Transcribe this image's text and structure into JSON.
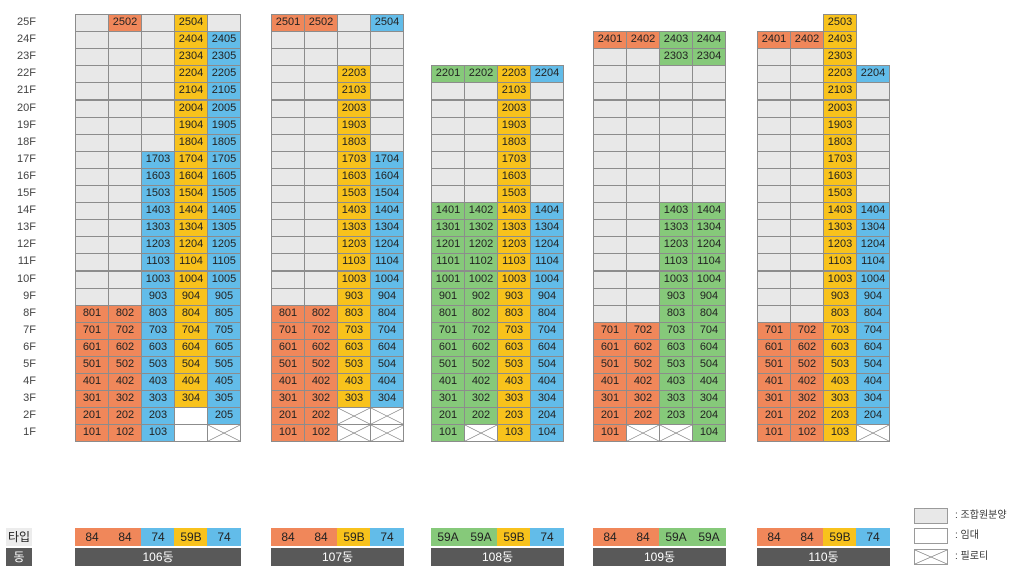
{
  "floors": [
    "25F",
    "24F",
    "23F",
    "22F",
    "21F",
    "20F",
    "19F",
    "18F",
    "17F",
    "16F",
    "15F",
    "14F",
    "13F",
    "12F",
    "11F",
    "10F",
    "9F",
    "8F",
    "7F",
    "6F",
    "5F",
    "4F",
    "3F",
    "2F",
    "1F"
  ],
  "row_headers": {
    "type": "타입",
    "dong": "동"
  },
  "legend": [
    {
      "key": "gray",
      "label": ": 조합원분양",
      "color": "#e8e8e8"
    },
    {
      "key": "white",
      "label": ": 임대",
      "color": "#ffffff"
    },
    {
      "key": "x",
      "label": ": 필로티",
      "color": "#ffffff"
    }
  ],
  "colors": {
    "orange": "#f0875a",
    "yellow": "#f8c21c",
    "blue": "#62bce9",
    "green": "#86c97a",
    "gray": "#e8e8e8",
    "dark": "#595959"
  },
  "buildings": [
    {
      "name": "106동",
      "types": [
        {
          "label": "84",
          "color": "o"
        },
        {
          "label": "84",
          "color": "o"
        },
        {
          "label": "74",
          "color": "b"
        },
        {
          "label": "59B",
          "color": "y"
        },
        {
          "label": "74",
          "color": "b"
        }
      ],
      "rows": [
        [
          "e",
          "o2502",
          "e",
          "y2504",
          "e"
        ],
        [
          "e",
          "e",
          "e",
          "y2404",
          "b2405"
        ],
        [
          "e",
          "e",
          "e",
          "y2304",
          "b2305"
        ],
        [
          "e",
          "e",
          "e",
          "y2204",
          "b2205"
        ],
        [
          "e",
          "e",
          "e",
          "y2104",
          "b2105"
        ],
        [
          "e",
          "e",
          "e",
          "y2004",
          "b2005"
        ],
        [
          "e",
          "e",
          "e",
          "y1904",
          "b1905"
        ],
        [
          "e",
          "e",
          "e",
          "y1804",
          "b1805"
        ],
        [
          "e",
          "e",
          "b1703",
          "y1704",
          "b1705"
        ],
        [
          "e",
          "e",
          "b1603",
          "y1604",
          "b1605"
        ],
        [
          "e",
          "e",
          "b1503",
          "y1504",
          "b1505"
        ],
        [
          "e",
          "e",
          "b1403",
          "y1404",
          "b1405"
        ],
        [
          "e",
          "e",
          "b1303",
          "y1304",
          "b1305"
        ],
        [
          "e",
          "e",
          "b1203",
          "y1204",
          "b1205"
        ],
        [
          "e",
          "e",
          "b1103",
          "y1104",
          "b1105"
        ],
        [
          "e",
          "e",
          "b1003",
          "y1004",
          "b1005"
        ],
        [
          "e",
          "e",
          "b903",
          "y904",
          "b905"
        ],
        [
          "o801",
          "o802",
          "b803",
          "y804",
          "b805"
        ],
        [
          "o701",
          "o702",
          "b703",
          "y704",
          "b705"
        ],
        [
          "o601",
          "o602",
          "b603",
          "y604",
          "b605"
        ],
        [
          "o501",
          "o502",
          "b503",
          "y504",
          "b505"
        ],
        [
          "o401",
          "o402",
          "b403",
          "y404",
          "b405"
        ],
        [
          "o301",
          "o302",
          "b303",
          "y304",
          "b305"
        ],
        [
          "o201",
          "o202",
          "b203",
          "w",
          "b205"
        ],
        [
          "o101",
          "o102",
          "b103",
          "w",
          "x"
        ]
      ]
    },
    {
      "name": "107동",
      "types": [
        {
          "label": "84",
          "color": "o"
        },
        {
          "label": "84",
          "color": "o"
        },
        {
          "label": "59B",
          "color": "y"
        },
        {
          "label": "74",
          "color": "b"
        }
      ],
      "rows": [
        [
          "o2501",
          "o2502",
          "e",
          "b2504"
        ],
        [
          "e",
          "e",
          "e",
          "e"
        ],
        [
          "e",
          "e",
          "e",
          "e"
        ],
        [
          "e",
          "e",
          "y2203",
          "e"
        ],
        [
          "e",
          "e",
          "y2103",
          "e"
        ],
        [
          "e",
          "e",
          "y2003",
          "e"
        ],
        [
          "e",
          "e",
          "y1903",
          "e"
        ],
        [
          "e",
          "e",
          "y1803",
          "e"
        ],
        [
          "e",
          "e",
          "y1703",
          "b1704"
        ],
        [
          "e",
          "e",
          "y1603",
          "b1604"
        ],
        [
          "e",
          "e",
          "y1503",
          "b1504"
        ],
        [
          "e",
          "e",
          "y1403",
          "b1404"
        ],
        [
          "e",
          "e",
          "y1303",
          "b1304"
        ],
        [
          "e",
          "e",
          "y1203",
          "b1204"
        ],
        [
          "e",
          "e",
          "y1103",
          "b1104"
        ],
        [
          "e",
          "e",
          "y1003",
          "b1004"
        ],
        [
          "e",
          "e",
          "y903",
          "b904"
        ],
        [
          "o801",
          "o802",
          "y803",
          "b804"
        ],
        [
          "o701",
          "o702",
          "y703",
          "b704"
        ],
        [
          "o601",
          "o602",
          "y603",
          "b604"
        ],
        [
          "o501",
          "o502",
          "y503",
          "b504"
        ],
        [
          "o401",
          "o402",
          "y403",
          "b404"
        ],
        [
          "o301",
          "o302",
          "y303",
          "b304"
        ],
        [
          "o201",
          "o202",
          "x",
          "x"
        ],
        [
          "o101",
          "o102",
          "x",
          "x"
        ]
      ]
    },
    {
      "name": "108동",
      "types": [
        {
          "label": "59A",
          "color": "g"
        },
        {
          "label": "59A",
          "color": "g"
        },
        {
          "label": "59B",
          "color": "y"
        },
        {
          "label": "74",
          "color": "b"
        }
      ],
      "rows": [
        [
          "-",
          "-",
          "-",
          "-"
        ],
        [
          "-",
          "-",
          "-",
          "-"
        ],
        [
          "-",
          "-",
          "-",
          "-"
        ],
        [
          "g2201",
          "g2202",
          "y2203",
          "b2204"
        ],
        [
          "e",
          "e",
          "y2103",
          "e"
        ],
        [
          "e",
          "e",
          "y2003",
          "e"
        ],
        [
          "e",
          "e",
          "y1903",
          "e"
        ],
        [
          "e",
          "e",
          "y1803",
          "e"
        ],
        [
          "e",
          "e",
          "y1703",
          "e"
        ],
        [
          "e",
          "e",
          "y1603",
          "e"
        ],
        [
          "e",
          "e",
          "y1503",
          "e"
        ],
        [
          "g1401",
          "g1402",
          "y1403",
          "b1404"
        ],
        [
          "g1301",
          "g1302",
          "y1303",
          "b1304"
        ],
        [
          "g1201",
          "g1202",
          "y1203",
          "b1204"
        ],
        [
          "g1101",
          "g1102",
          "y1103",
          "b1104"
        ],
        [
          "g1001",
          "g1002",
          "y1003",
          "b1004"
        ],
        [
          "g901",
          "g902",
          "y903",
          "b904"
        ],
        [
          "g801",
          "g802",
          "y803",
          "b804"
        ],
        [
          "g701",
          "g702",
          "y703",
          "b704"
        ],
        [
          "g601",
          "g602",
          "y603",
          "b604"
        ],
        [
          "g501",
          "g502",
          "y503",
          "b504"
        ],
        [
          "g401",
          "g402",
          "y403",
          "b404"
        ],
        [
          "g301",
          "g302",
          "y303",
          "b304"
        ],
        [
          "g201",
          "g202",
          "y203",
          "b204"
        ],
        [
          "g101",
          "x",
          "y103",
          "b104"
        ]
      ]
    },
    {
      "name": "109동",
      "types": [
        {
          "label": "84",
          "color": "o"
        },
        {
          "label": "84",
          "color": "o"
        },
        {
          "label": "59A",
          "color": "g"
        },
        {
          "label": "59A",
          "color": "g"
        }
      ],
      "rows": [
        [
          "-",
          "-",
          "-",
          "-"
        ],
        [
          "o2401",
          "o2402",
          "g2403",
          "g2404"
        ],
        [
          "e",
          "e",
          "g2303",
          "g2304"
        ],
        [
          "e",
          "e",
          "e",
          "e"
        ],
        [
          "e",
          "e",
          "e",
          "e"
        ],
        [
          "e",
          "e",
          "e",
          "e"
        ],
        [
          "e",
          "e",
          "e",
          "e"
        ],
        [
          "e",
          "e",
          "e",
          "e"
        ],
        [
          "e",
          "e",
          "e",
          "e"
        ],
        [
          "e",
          "e",
          "e",
          "e"
        ],
        [
          "e",
          "e",
          "e",
          "e"
        ],
        [
          "e",
          "e",
          "g1403",
          "g1404"
        ],
        [
          "e",
          "e",
          "g1303",
          "g1304"
        ],
        [
          "e",
          "e",
          "g1203",
          "g1204"
        ],
        [
          "e",
          "e",
          "g1103",
          "g1104"
        ],
        [
          "e",
          "e",
          "g1003",
          "g1004"
        ],
        [
          "e",
          "e",
          "g903",
          "g904"
        ],
        [
          "e",
          "e",
          "g803",
          "g804"
        ],
        [
          "o701",
          "o702",
          "g703",
          "g704"
        ],
        [
          "o601",
          "o602",
          "g603",
          "g604"
        ],
        [
          "o501",
          "o502",
          "g503",
          "g504"
        ],
        [
          "o401",
          "o402",
          "g403",
          "g404"
        ],
        [
          "o301",
          "o302",
          "g303",
          "g304"
        ],
        [
          "o201",
          "o202",
          "g203",
          "g204"
        ],
        [
          "o101",
          "x",
          "x",
          "g104"
        ]
      ]
    },
    {
      "name": "110동",
      "types": [
        {
          "label": "84",
          "color": "o"
        },
        {
          "label": "84",
          "color": "o"
        },
        {
          "label": "59B",
          "color": "y"
        },
        {
          "label": "74",
          "color": "b"
        }
      ],
      "rows": [
        [
          "-",
          "-",
          "y2503",
          "-"
        ],
        [
          "o2401",
          "o2402",
          "y2403",
          "-"
        ],
        [
          "e",
          "e",
          "y2303",
          "-"
        ],
        [
          "e",
          "e",
          "y2203",
          "b2204"
        ],
        [
          "e",
          "e",
          "y2103",
          "e"
        ],
        [
          "e",
          "e",
          "y2003",
          "e"
        ],
        [
          "e",
          "e",
          "y1903",
          "e"
        ],
        [
          "e",
          "e",
          "y1803",
          "e"
        ],
        [
          "e",
          "e",
          "y1703",
          "e"
        ],
        [
          "e",
          "e",
          "y1603",
          "e"
        ],
        [
          "e",
          "e",
          "y1503",
          "e"
        ],
        [
          "e",
          "e",
          "y1403",
          "b1404"
        ],
        [
          "e",
          "e",
          "y1303",
          "b1304"
        ],
        [
          "e",
          "e",
          "y1203",
          "b1204"
        ],
        [
          "e",
          "e",
          "y1103",
          "b1104"
        ],
        [
          "e",
          "e",
          "y1003",
          "b1004"
        ],
        [
          "e",
          "e",
          "y903",
          "b904"
        ],
        [
          "e",
          "e",
          "y803",
          "b804"
        ],
        [
          "o701",
          "o702",
          "y703",
          "b704"
        ],
        [
          "o601",
          "o602",
          "y603",
          "b604"
        ],
        [
          "o501",
          "o502",
          "y503",
          "b504"
        ],
        [
          "o401",
          "o402",
          "y403",
          "b404"
        ],
        [
          "o301",
          "o302",
          "y303",
          "b304"
        ],
        [
          "o201",
          "o202",
          "y203",
          "b204"
        ],
        [
          "o101",
          "o102",
          "y103",
          "x"
        ]
      ]
    }
  ]
}
